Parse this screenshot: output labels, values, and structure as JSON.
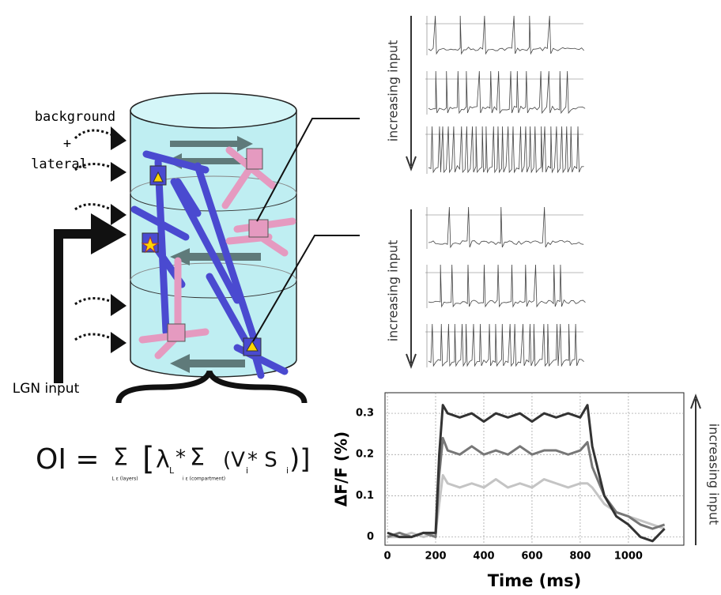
{
  "labels": {
    "background": "background",
    "plus": "+",
    "lateral": "lateral",
    "lgn": "LGN input",
    "increasing_top": "increasing input",
    "increasing_mid": "increasing input",
    "increasing_chart": "increasing input",
    "formula": {
      "lhs": "OI =",
      "sum1": "Σ",
      "sub1": "L ε (layers)",
      "open": "[",
      "lambda": "λ",
      "lambda_sub": "L",
      "times": " * ",
      "sum2": "Σ",
      "sub2": "i ε (compartment)",
      "v": "(V",
      "v_sub": "i",
      "mid": " * S",
      "s_sub": "i",
      "close": ")]"
    }
  },
  "chart_data": {
    "type": "line",
    "xlabel": "Time (ms)",
    "ylabel": "ΔF/F (%)",
    "x": [
      0,
      50,
      100,
      150,
      200,
      215,
      230,
      250,
      300,
      350,
      400,
      450,
      500,
      550,
      600,
      650,
      700,
      750,
      800,
      830,
      850,
      900,
      950,
      1000,
      1050,
      1100,
      1150
    ],
    "series": [
      {
        "color": "#333333",
        "values": [
          0.01,
          0.0,
          0.0,
          0.01,
          0.01,
          0.2,
          0.32,
          0.3,
          0.29,
          0.3,
          0.28,
          0.3,
          0.29,
          0.3,
          0.28,
          0.3,
          0.29,
          0.3,
          0.29,
          0.32,
          0.22,
          0.1,
          0.05,
          0.03,
          0.0,
          -0.01,
          0.02
        ]
      },
      {
        "color": "#777777",
        "values": [
          0.0,
          0.01,
          0.0,
          0.01,
          0.0,
          0.15,
          0.24,
          0.21,
          0.2,
          0.22,
          0.2,
          0.21,
          0.2,
          0.22,
          0.2,
          0.21,
          0.21,
          0.2,
          0.21,
          0.23,
          0.17,
          0.1,
          0.06,
          0.05,
          0.03,
          0.02,
          0.03
        ]
      },
      {
        "color": "#c4c4c4",
        "values": [
          0.0,
          0.0,
          0.01,
          0.0,
          0.01,
          0.08,
          0.15,
          0.13,
          0.12,
          0.13,
          0.12,
          0.14,
          0.12,
          0.13,
          0.12,
          0.14,
          0.13,
          0.12,
          0.13,
          0.13,
          0.12,
          0.08,
          0.06,
          0.05,
          0.04,
          0.03,
          0.02
        ]
      }
    ],
    "xlim": [
      -10,
      1230
    ],
    "ylim": [
      -0.02,
      0.35
    ],
    "xticks": [
      0,
      200,
      400,
      600,
      800,
      1000
    ],
    "yticks": [
      0,
      0.1,
      0.2,
      0.3
    ],
    "grid": true
  }
}
